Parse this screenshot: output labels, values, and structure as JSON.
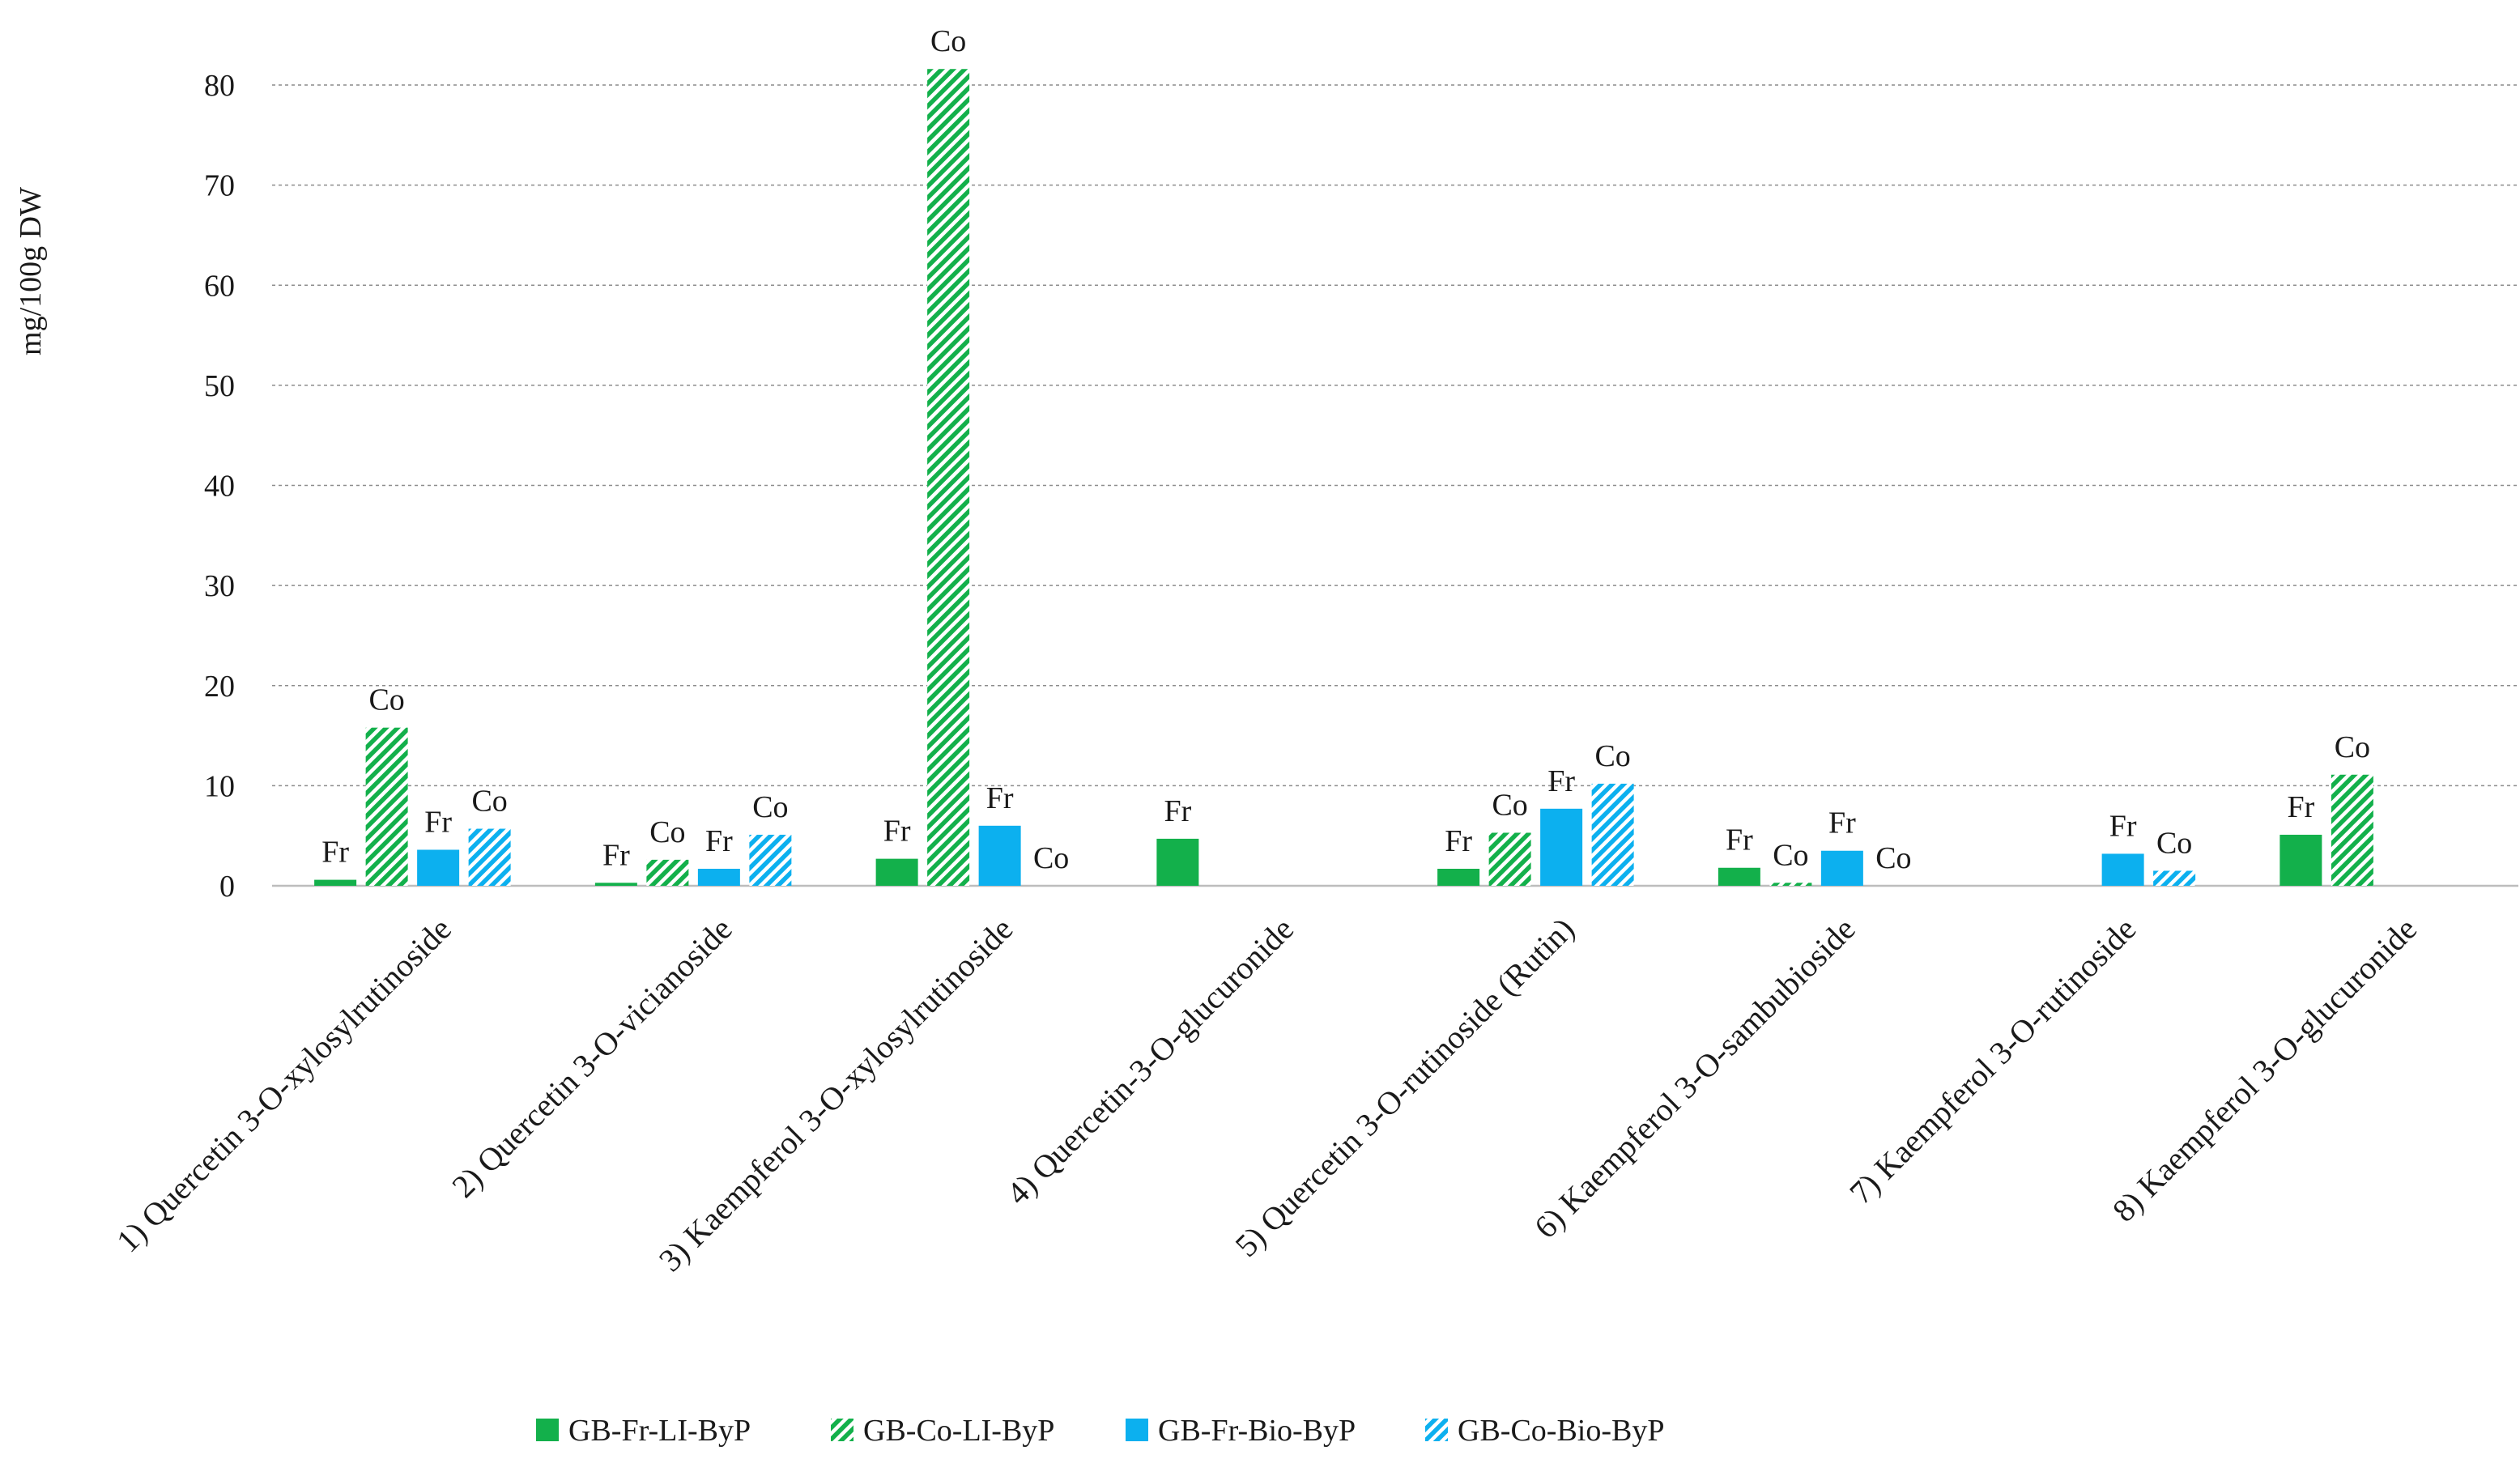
{
  "chart_data": {
    "type": "bar",
    "title": "",
    "xlabel": "",
    "ylabel": "mg/100g DW",
    "ylim": [
      0,
      80
    ],
    "yticks": [
      0,
      10,
      20,
      30,
      40,
      50,
      60,
      70,
      80
    ],
    "grid": true,
    "legend_position": "bottom",
    "categories": [
      "1) Quercetin 3-O-xylosylrutinoside",
      "2) Quercetin 3-O-vicianoside",
      "3) Kaempferol 3-O-xylosylrutinoside",
      "4) Quercetin-3-O-glucuronide",
      "5) Quercetin 3-O-rutinoside (Rutin)",
      "6) Kaempferol 3-O-sambubioside",
      "7) Kaempferol 3-O-rutinoside",
      "8) Kaempferol 3-O-glucuronide"
    ],
    "series": [
      {
        "name": "GB-Fr-LI-ByP",
        "color": "#13b04b",
        "pattern": "solid",
        "values": [
          0.6,
          0.3,
          2.7,
          4.7,
          1.7,
          1.8,
          0,
          5.1
        ],
        "labels": [
          "Fr",
          "Fr",
          "Fr",
          "Fr",
          "Fr",
          "Fr",
          "",
          "Fr"
        ]
      },
      {
        "name": "GB-Co-LI-ByP",
        "color": "#13b04b",
        "pattern": "hatched",
        "values": [
          15.8,
          2.6,
          81.6,
          0,
          5.3,
          0.3,
          0,
          11.1
        ],
        "labels": [
          "Co",
          "Co",
          "Co",
          "",
          "Co",
          "Co",
          "",
          "Co"
        ]
      },
      {
        "name": "GB-Fr-Bio-ByP",
        "color": "#0cb0ef",
        "pattern": "solid",
        "values": [
          3.6,
          1.7,
          6.0,
          0,
          7.7,
          3.5,
          3.2,
          0
        ],
        "labels": [
          "Fr",
          "Fr",
          "Fr",
          "",
          "Fr",
          "Fr",
          "Fr",
          ""
        ]
      },
      {
        "name": "GB-Co-Bio-ByP",
        "color": "#0cb0ef",
        "pattern": "hatched",
        "values": [
          5.7,
          5.1,
          0,
          0,
          10.2,
          0,
          1.5,
          0
        ],
        "labels": [
          "Co",
          "Co",
          "Co",
          "",
          "Co",
          "Co",
          "Co",
          ""
        ]
      }
    ]
  }
}
